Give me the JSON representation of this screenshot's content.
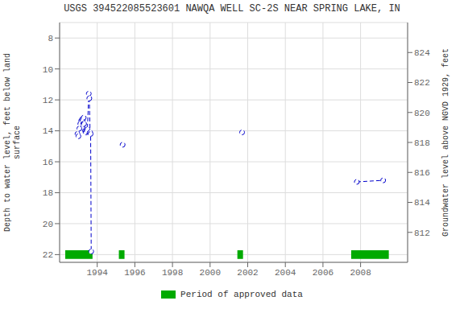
{
  "chart_data": {
    "type": "line",
    "title": "USGS 394522085523601 NAWQA WELL SC-2S NEAR SPRING LAKE, IN",
    "ylabel": "Depth to water level, feet below land\nsurface",
    "y2label": "Groundwater level above NGVD 1929, feet",
    "xlim": [
      1992.0,
      2010.5
    ],
    "xticks": [
      1994,
      1996,
      1998,
      2000,
      2002,
      2004,
      2006,
      2008
    ],
    "ylim": [
      22.5,
      7.0
    ],
    "yticks": [
      8,
      10,
      12,
      14,
      16,
      18,
      20,
      22
    ],
    "y2lim": [
      810.0,
      826.0
    ],
    "y2ticks": [
      824,
      822,
      820,
      818,
      816,
      814,
      812
    ],
    "grid": true,
    "legend": "bottom",
    "series": [
      {
        "color": "#0000cc",
        "line_style": "dashed",
        "marker": "o",
        "x": [
          1992.95,
          1993.0,
          1993.05,
          1993.1,
          1993.15,
          1993.2,
          1993.22,
          1993.25,
          1993.28,
          1993.3,
          1993.35,
          1993.38,
          1993.4,
          1993.42,
          1993.45,
          1993.48,
          1993.55,
          1993.58,
          1993.62,
          1993.65,
          1993.68
        ],
        "values": [
          14.2,
          14.35,
          13.85,
          13.55,
          13.35,
          13.25,
          13.35,
          13.55,
          13.15,
          13.55,
          14.0,
          14.1,
          14.1,
          14.0,
          14.0,
          13.9,
          11.6,
          11.9,
          14.1,
          14.2,
          21.8
        ]
      },
      {
        "color": "#0000cc",
        "line_style": "dashed",
        "marker": "o",
        "x": [
          1995.35
        ],
        "values": [
          14.9
        ]
      },
      {
        "color": "#0000cc",
        "line_style": "dashed",
        "marker": "o",
        "x": [
          2001.7
        ],
        "values": [
          14.1
        ]
      },
      {
        "color": "#0000cc",
        "line_style": "dashed",
        "marker": "o",
        "x": [
          2007.8,
          2009.2
        ],
        "values": [
          17.3,
          17.2
        ]
      }
    ],
    "approved_periods": {
      "name": "Period of approved data",
      "color": "#00aa00",
      "y": 22.0,
      "half_height": 0.28,
      "spans": [
        {
          "start": 1992.3,
          "end": 1993.75
        },
        {
          "start": 1995.15,
          "end": 1995.45
        },
        {
          "start": 2001.45,
          "end": 2001.75
        },
        {
          "start": 2007.5,
          "end": 2009.5
        }
      ]
    }
  }
}
